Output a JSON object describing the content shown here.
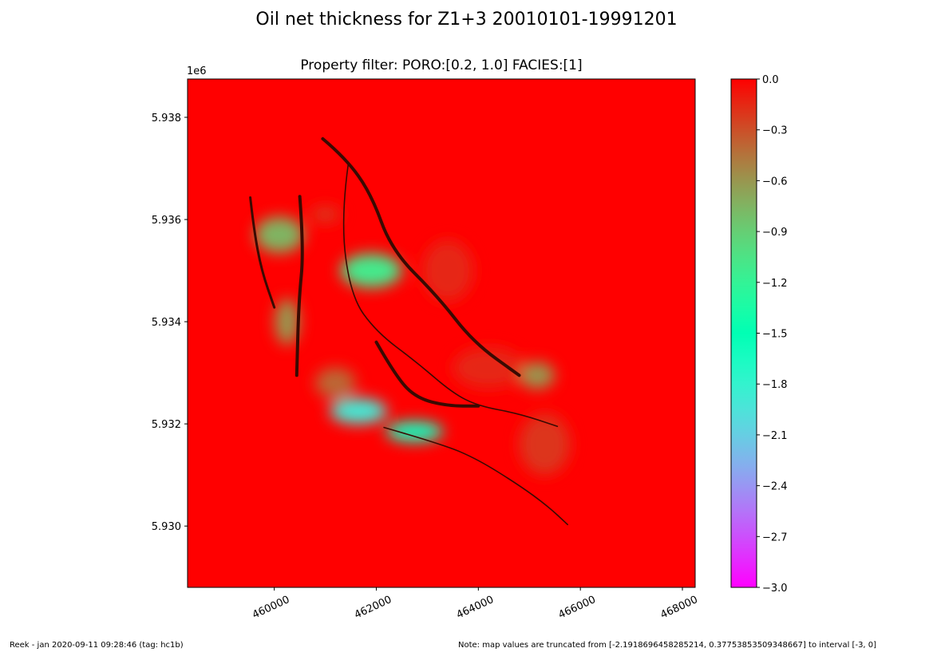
{
  "figure": {
    "suptitle": "Oil net thickness for Z1+3 20010101-19991201",
    "footer_left": "Reek -  jan 2020-09-11 09:28:46 (tag: hc1b)",
    "footer_right": "Note: map values are truncated from [-2.1918696458285214, 0.37753853509348667] to interval [-3, 0]"
  },
  "chart_data": {
    "type": "heatmap",
    "title": "Property filter:   PORO:[0.2, 1.0]  FACIES:[1]",
    "y_offset_label": "1e6",
    "xlim": [
      458300,
      468250
    ],
    "ylim": [
      5928800,
      5938750
    ],
    "x_ticks": [
      460000,
      462000,
      464000,
      466000,
      468000
    ],
    "x_tick_labels": [
      "460000",
      "462000",
      "464000",
      "466000",
      "468000"
    ],
    "y_ticks": [
      5930000,
      5932000,
      5934000,
      5936000,
      5938000
    ],
    "y_tick_labels": [
      "5.930",
      "5.932",
      "5.934",
      "5.936",
      "5.938"
    ],
    "colorbar": {
      "range": [
        -3.0,
        0.0
      ],
      "ticks": [
        0.0,
        -0.3,
        -0.6,
        -0.9,
        -1.2,
        -1.5,
        -1.8,
        -2.1,
        -2.4,
        -2.7,
        -3.0
      ],
      "tick_labels": [
        "0.0",
        "−0.3",
        "−0.6",
        "−0.9",
        "−1.2",
        "−1.5",
        "−1.8",
        "−2.1",
        "−2.4",
        "−2.7",
        "−3.0"
      ],
      "colormap": "rainbow"
    },
    "background_value": 0.0,
    "value_patches": [
      {
        "x": 460100,
        "y": 5935700,
        "rx": 480,
        "ry": 350,
        "value": -0.75
      },
      {
        "x": 460250,
        "y": 5934000,
        "rx": 240,
        "ry": 450,
        "value": -0.6
      },
      {
        "x": 461900,
        "y": 5935000,
        "rx": 600,
        "ry": 330,
        "value": -1.1
      },
      {
        "x": 461000,
        "y": 5936100,
        "rx": 300,
        "ry": 160,
        "value": -0.2
      },
      {
        "x": 461650,
        "y": 5932250,
        "rx": 560,
        "ry": 250,
        "value": -1.9
      },
      {
        "x": 462750,
        "y": 5931850,
        "rx": 560,
        "ry": 200,
        "value": -1.6
      },
      {
        "x": 465150,
        "y": 5932950,
        "rx": 350,
        "ry": 260,
        "value": -0.6
      },
      {
        "x": 463400,
        "y": 5935000,
        "rx": 500,
        "ry": 600,
        "value": -0.15
      },
      {
        "x": 464200,
        "y": 5933100,
        "rx": 700,
        "ry": 400,
        "value": -0.15
      },
      {
        "x": 465300,
        "y": 5931600,
        "rx": 500,
        "ry": 600,
        "value": -0.2
      },
      {
        "x": 461200,
        "y": 5932800,
        "rx": 400,
        "ry": 300,
        "value": -0.4
      }
    ],
    "fault_lines": [
      [
        [
          459530,
          5936430
        ],
        [
          459600,
          5935800
        ],
        [
          459750,
          5935000
        ],
        [
          460000,
          5934280
        ]
      ],
      [
        [
          460500,
          5936450
        ],
        [
          460580,
          5935400
        ],
        [
          460480,
          5934400
        ],
        [
          460440,
          5932950
        ]
      ],
      [
        [
          460950,
          5937580
        ],
        [
          461400,
          5937200
        ],
        [
          461900,
          5936500
        ],
        [
          462300,
          5935400
        ],
        [
          463200,
          5934500
        ],
        [
          463900,
          5933600
        ],
        [
          464800,
          5932950
        ]
      ],
      [
        [
          461450,
          5937080
        ],
        [
          461300,
          5936000
        ],
        [
          461500,
          5934500
        ],
        [
          462000,
          5933800
        ],
        [
          462800,
          5933200
        ],
        [
          463500,
          5932600
        ],
        [
          464000,
          5932350
        ],
        [
          464800,
          5932200
        ],
        [
          465550,
          5931950
        ]
      ],
      [
        [
          462000,
          5933600
        ],
        [
          462400,
          5932900
        ],
        [
          462800,
          5932500
        ],
        [
          463400,
          5932350
        ],
        [
          464000,
          5932350
        ]
      ],
      [
        [
          462150,
          5931930
        ],
        [
          463300,
          5931600
        ],
        [
          464000,
          5931300
        ],
        [
          464800,
          5930800
        ],
        [
          465350,
          5930400
        ],
        [
          465750,
          5930030
        ]
      ]
    ]
  }
}
